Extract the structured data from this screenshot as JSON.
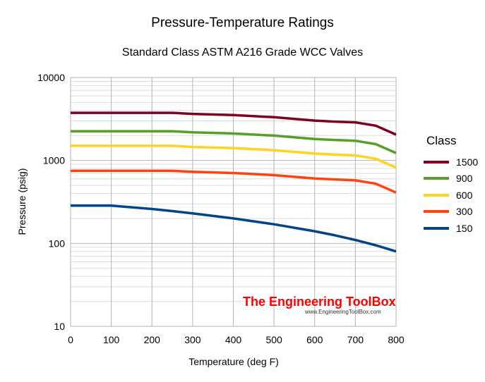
{
  "chart_data": {
    "type": "line",
    "title": "Pressure-Temperature Ratings",
    "subtitle": "Standard Class ASTM A216 Grade WCC Valves",
    "xlabel": "Temperature (deg F)",
    "ylabel": "Pressure (psig)",
    "xlim": [
      0,
      800
    ],
    "ylim": [
      10,
      10000
    ],
    "yscale": "log",
    "grid": true,
    "x_ticks": [
      "0",
      "100",
      "200",
      "300",
      "400",
      "500",
      "600",
      "700",
      "800"
    ],
    "y_ticks": [
      "10",
      "100",
      "1000",
      "10000"
    ],
    "legend": {
      "title": "Class",
      "placement": "right"
    },
    "x": [
      0,
      100,
      200,
      250,
      300,
      400,
      500,
      600,
      650,
      700,
      750,
      800
    ],
    "series": [
      {
        "name": "1500",
        "color": "#800020",
        "values": [
          3750,
          3750,
          3750,
          3750,
          3640,
          3530,
          3325,
          3025,
          2940,
          2880,
          2625,
          2050
        ]
      },
      {
        "name": "900",
        "color": "#5a9e2a",
        "values": [
          2250,
          2250,
          2250,
          2250,
          2185,
          2115,
          1995,
          1815,
          1765,
          1730,
          1575,
          1230
        ]
      },
      {
        "name": "600",
        "color": "#ffd320",
        "values": [
          1500,
          1500,
          1500,
          1500,
          1455,
          1410,
          1330,
          1210,
          1175,
          1150,
          1050,
          820
        ]
      },
      {
        "name": "300",
        "color": "#ff420e",
        "values": [
          750,
          750,
          750,
          750,
          730,
          705,
          665,
          605,
          590,
          575,
          525,
          410
        ]
      },
      {
        "name": "150",
        "color": "#004586",
        "values": [
          285,
          285,
          260,
          245,
          230,
          200,
          170,
          140,
          125,
          110,
          95,
          80
        ]
      }
    ]
  },
  "watermark": {
    "name": "The Engineering ToolBox",
    "url": "www.EngineeringToolBox.com"
  }
}
